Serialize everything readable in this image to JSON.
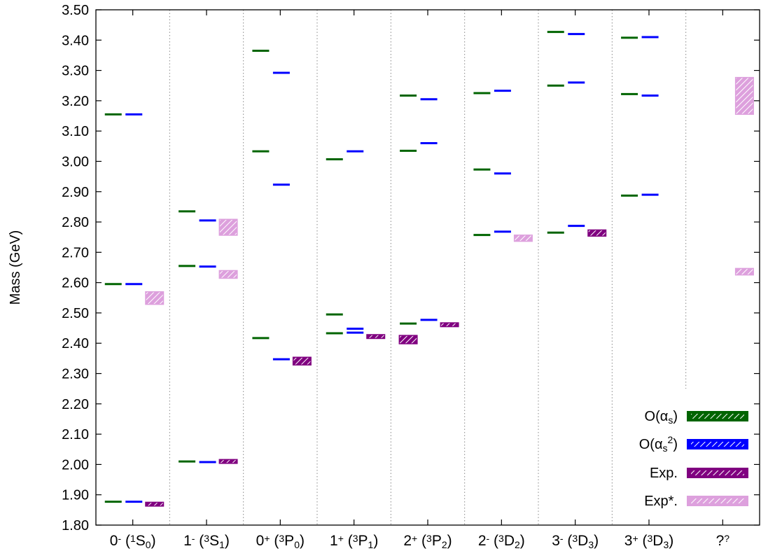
{
  "chart_data": {
    "type": "spectrum",
    "ylabel": "Mass (GeV)",
    "ylim": [
      1.8,
      3.5
    ],
    "yticks": [
      "1.80",
      "1.90",
      "2.00",
      "2.10",
      "2.20",
      "2.30",
      "2.40",
      "2.50",
      "2.60",
      "2.70",
      "2.80",
      "2.90",
      "3.00",
      "3.10",
      "3.20",
      "3.30",
      "3.40",
      "3.50"
    ],
    "categories": [
      {
        "jp": "0",
        "p": "-",
        "pre": "(",
        "sup": "1",
        "L": "S",
        "sub": "0",
        "post": ")"
      },
      {
        "jp": "1",
        "p": "-",
        "pre": "(",
        "sup": "3",
        "L": "S",
        "sub": "1",
        "post": ")"
      },
      {
        "jp": "0",
        "p": "+",
        "pre": "(",
        "sup": "3",
        "L": "P",
        "sub": "0",
        "post": ")"
      },
      {
        "jp": "1",
        "p": "+",
        "pre": "(",
        "sup": "3",
        "L": "P",
        "sub": "1",
        "post": ")"
      },
      {
        "jp": "2",
        "p": "+",
        "pre": "(",
        "sup": "3",
        "L": "P",
        "sub": "2",
        "post": ")"
      },
      {
        "jp": "2",
        "p": "-",
        "pre": "(",
        "sup": "3",
        "L": "D",
        "sub": "2",
        "post": ")"
      },
      {
        "jp": "3",
        "p": "-",
        "pre": "(",
        "sup": "3",
        "L": "D",
        "sub": "3",
        "post": ")"
      },
      {
        "jp": "3",
        "p": "+",
        "pre": "(",
        "sup": "3",
        "L": "D",
        "sub": "3",
        "post": ")"
      },
      {
        "jp": "?",
        "p": "?",
        "pre": "",
        "sup": "",
        "L": "",
        "sub": "",
        "post": ""
      }
    ],
    "legend_position": "bottom-right",
    "grid": false,
    "series": [
      {
        "name": "O(αs)",
        "name_main": "O(α",
        "name_sub": "s",
        "name_sup": "",
        "name_end": ")",
        "color": "#006400",
        "slot": 0,
        "levels": [
          [
            1.877,
            2.595,
            3.155
          ],
          [
            2.01,
            2.655,
            2.835
          ],
          [
            2.417,
            3.033,
            3.365
          ],
          [
            2.433,
            2.495,
            3.007
          ],
          [
            2.465,
            3.035,
            3.217
          ],
          [
            2.757,
            2.973,
            3.225
          ],
          [
            2.765,
            3.25,
            3.427
          ],
          [
            2.887,
            3.222,
            3.408
          ],
          []
        ]
      },
      {
        "name": "O(αs²)",
        "name_main": "O(α",
        "name_sub": "s",
        "name_sup": "2",
        "name_end": ")",
        "color": "#0000ff",
        "slot": 1,
        "levels": [
          [
            1.877,
            2.595,
            3.155
          ],
          [
            2.008,
            2.653,
            2.805
          ],
          [
            2.347,
            2.923,
            3.292
          ],
          [
            2.435,
            2.448,
            3.033
          ],
          [
            2.477,
            3.06,
            3.205
          ],
          [
            2.768,
            2.96,
            3.233
          ],
          [
            2.787,
            3.26,
            3.42
          ],
          [
            2.89,
            3.217,
            3.41
          ],
          []
        ]
      }
    ],
    "experiment": [
      {
        "name": "Exp.",
        "color": "#800080",
        "boxes": [
          {
            "cat": 0,
            "slot": 2,
            "lo": 1.866,
            "hi": 1.872
          },
          {
            "cat": 1,
            "slot": 2,
            "lo": 2.008,
            "hi": 2.012
          },
          {
            "cat": 2,
            "slot": 2,
            "lo": 2.33,
            "hi": 2.352
          },
          {
            "cat": 3,
            "slot": 2,
            "lo": 2.419,
            "hi": 2.425
          },
          {
            "cat": 4,
            "slot": 0,
            "lo": 2.4,
            "hi": 2.424
          },
          {
            "cat": 4,
            "slot": 2,
            "lo": 2.458,
            "hi": 2.464
          },
          {
            "cat": 6,
            "slot": 2,
            "lo": 2.755,
            "hi": 2.772
          }
        ]
      },
      {
        "name": "Exp*.",
        "color": "#dda0dd",
        "boxes": [
          {
            "cat": 0,
            "slot": 2,
            "lo": 2.53,
            "hi": 2.568
          },
          {
            "cat": 1,
            "slot": 2,
            "lo": 2.758,
            "hi": 2.807
          },
          {
            "cat": 1,
            "slot": 2,
            "lo": 2.616,
            "hi": 2.638
          },
          {
            "cat": 5,
            "slot": 2,
            "lo": 2.738,
            "hi": 2.755
          },
          {
            "cat": 8,
            "slot": 2,
            "lo": 3.157,
            "hi": 3.275
          },
          {
            "cat": 8,
            "slot": 2,
            "lo": 2.627,
            "hi": 2.645
          }
        ]
      }
    ]
  }
}
